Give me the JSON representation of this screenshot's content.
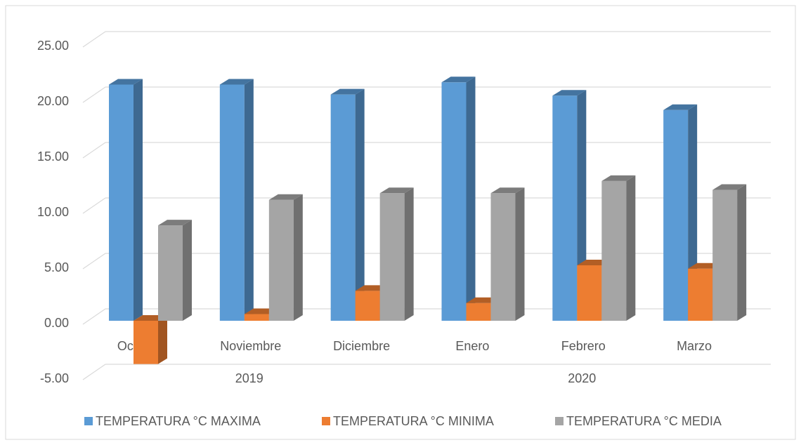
{
  "chart_data": {
    "type": "bar3d",
    "categories": [
      "Octubre",
      "Noviembre",
      "Diciembre",
      "Enero",
      "Febrero",
      "Marzo"
    ],
    "category_groups": [
      {
        "label": "2019",
        "count": 3
      },
      {
        "label": "2020",
        "count": 3
      }
    ],
    "series": [
      {
        "name": "TEMPERATURA °C MAXIMA",
        "color": "#5b9bd5",
        "values": [
          21.3,
          21.3,
          20.4,
          21.5,
          20.3,
          19.0
        ]
      },
      {
        "name": "TEMPERATURA °C MINIMA",
        "color": "#ed7d31",
        "values": [
          -3.9,
          0.6,
          2.7,
          1.6,
          5.0,
          4.7
        ]
      },
      {
        "name": "TEMPERATURA °C MEDIA",
        "color": "#a5a5a5",
        "values": [
          8.6,
          10.9,
          11.5,
          11.5,
          12.6,
          11.8
        ]
      }
    ],
    "ylim": [
      -5,
      25
    ],
    "yticks": [
      {
        "value": -5,
        "label": "-5.00"
      },
      {
        "value": 0,
        "label": "0.00"
      },
      {
        "value": 5,
        "label": "5.00"
      },
      {
        "value": 10,
        "label": "10.00"
      },
      {
        "value": 15,
        "label": "15.00"
      },
      {
        "value": 20,
        "label": "20.00"
      },
      {
        "value": 25,
        "label": "25.00"
      }
    ],
    "grid": true,
    "legend": "bottom"
  }
}
